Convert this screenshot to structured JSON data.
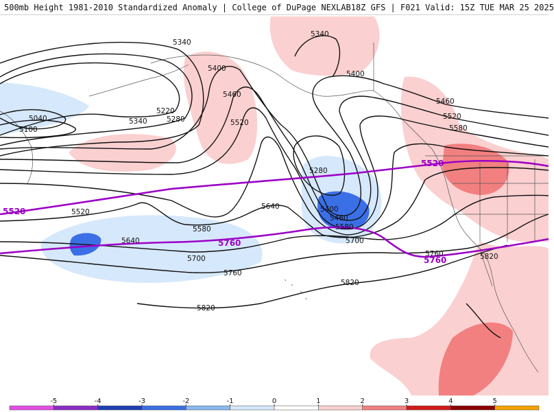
{
  "header": {
    "left": "500mb Height 1981-2010 Standardized Anomaly | College of DuPage NEXLAB",
    "right": "18Z GFS | F021 Valid: 15Z TUE MAR 25 2025"
  },
  "contour_labels": [
    "5340",
    "5340",
    "5400",
    "5400",
    "5460",
    "5460",
    "5520",
    "5520",
    "5580",
    "5580",
    "5280",
    "5220",
    "5340",
    "5280",
    "5040",
    "5100",
    "5400",
    "5460",
    "5580",
    "5640",
    "5640",
    "5700",
    "5700",
    "5760",
    "5760",
    "5820",
    "5820",
    "5820",
    "5520"
  ],
  "purple_labels": [
    "5520",
    "5520",
    "5760",
    "5760"
  ],
  "legend": {
    "ticks": [
      "-5",
      "-4",
      "-3",
      "-2",
      "-1",
      "0",
      "1",
      "2",
      "3",
      "4",
      "5"
    ],
    "colors": [
      "#e24fe6",
      "#8c2cc4",
      "#1f3fb4",
      "#3b6fe6",
      "#8ab8ef",
      "#d6e8fb",
      "#ffffff",
      "#fbd0d0",
      "#f28080",
      "#d21a1a",
      "#8b0000",
      "#f4a300"
    ]
  }
}
